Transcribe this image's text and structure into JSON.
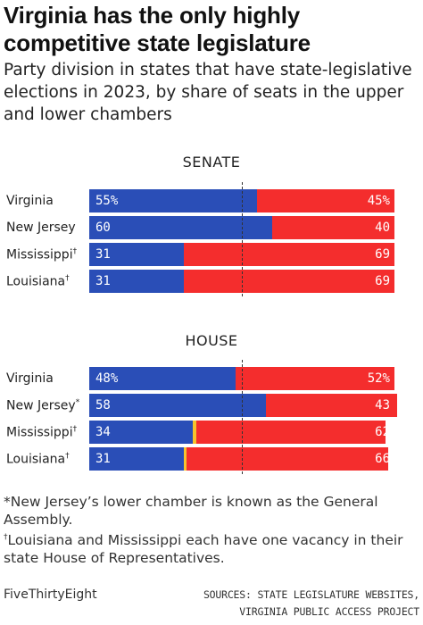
{
  "title": "Virginia has the only highly competitive state legislature",
  "subtitle": "Party division in states that have state-legislative elections in 2023, by share of seats in the upper and lower chambers",
  "colors": {
    "democrat": "#2a4eb7",
    "republican": "#f42d2d",
    "vacancy": "#f6c32d"
  },
  "chart_data": [
    {
      "type": "bar",
      "orientation": "horizontal-stacked",
      "title": "SENATE",
      "categories": [
        "Virginia",
        "New Jersey",
        "Mississippi",
        "Louisiana"
      ],
      "category_markers": [
        "",
        "",
        "†",
        "†"
      ],
      "series": [
        {
          "values": [
            55,
            60,
            31,
            31
          ],
          "labels": [
            "55%",
            "60",
            "31",
            "31"
          ]
        },
        {
          "values": [
            0,
            0,
            0,
            0
          ],
          "labels": [
            "",
            "",
            "",
            ""
          ]
        },
        {
          "values": [
            45,
            40,
            69,
            69
          ],
          "labels": [
            "45%",
            "40",
            "69",
            "69"
          ]
        }
      ],
      "xlim": [
        0,
        100
      ],
      "reference_line": 50
    },
    {
      "type": "bar",
      "orientation": "horizontal-stacked",
      "title": "HOUSE",
      "categories": [
        "Virginia",
        "New Jersey",
        "Mississippi",
        "Louisiana"
      ],
      "category_markers": [
        "",
        "*",
        "†",
        "†"
      ],
      "series": [
        {
          "values": [
            48,
            58,
            34,
            31
          ],
          "labels": [
            "48%",
            "58",
            "34",
            "31"
          ]
        },
        {
          "values": [
            0,
            0,
            1,
            1
          ],
          "labels": [
            "",
            "",
            "",
            ""
          ]
        },
        {
          "values": [
            52,
            43,
            62,
            66
          ],
          "labels": [
            "52%",
            "43",
            "62",
            "66"
          ]
        }
      ],
      "xlim": [
        0,
        100
      ],
      "reference_line": 50
    }
  ],
  "notes": {
    "nj_marker": "*",
    "nj_text": "New Jersey’s lower chamber is known as the General Assembly.",
    "la_ms_marker": "†",
    "la_ms_text": "Louisiana and Mississippi each have one vacancy in their state House of Representatives."
  },
  "footer": {
    "brand": "FiveThirtyEight",
    "sources_line1": "SOURCES: STATE LEGISLATURE WEBSITES,",
    "sources_line2": "VIRGINIA PUBLIC ACCESS PROJECT"
  }
}
